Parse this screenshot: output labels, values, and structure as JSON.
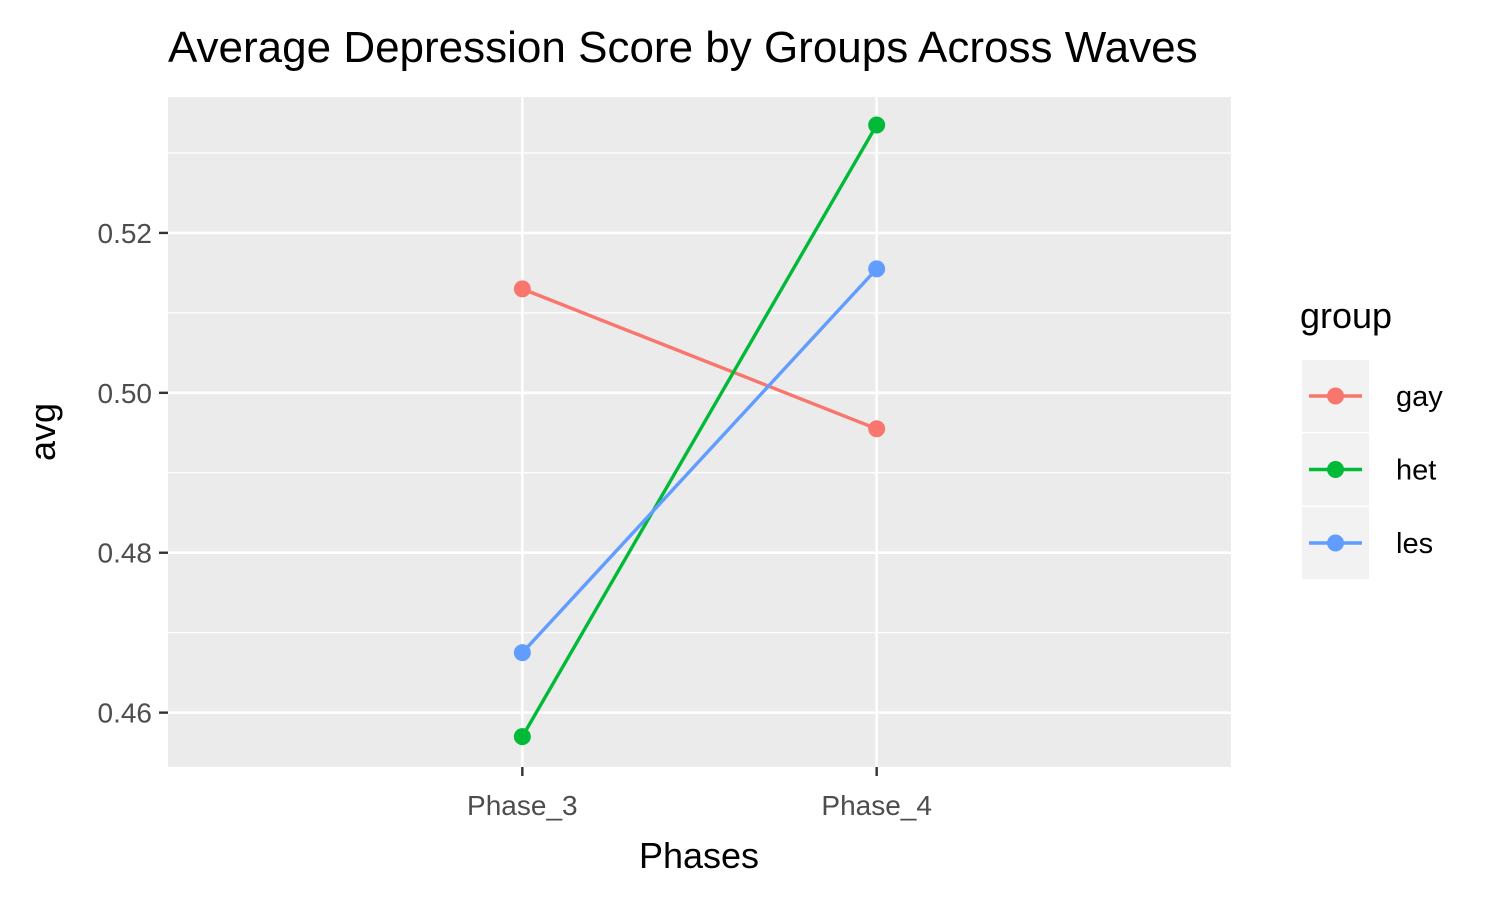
{
  "chart_data": {
    "type": "line",
    "title": "Average Depression Score by Groups Across Waves",
    "xlabel": "Phases",
    "ylabel": "avg",
    "categories": [
      "Phase_3",
      "Phase_4"
    ],
    "series": [
      {
        "name": "gay",
        "color": "#F8766D",
        "values": [
          0.513,
          0.4955
        ]
      },
      {
        "name": "het",
        "color": "#00BA38",
        "values": [
          0.457,
          0.5335
        ]
      },
      {
        "name": "les",
        "color": "#619CFF",
        "values": [
          0.4675,
          0.5155
        ]
      }
    ],
    "ylim": [
      0.4532,
      0.537
    ],
    "yticks": [
      0.46,
      0.48,
      0.5,
      0.52
    ],
    "ytick_labels": [
      "0.46",
      "0.48",
      "0.50",
      "0.52"
    ],
    "grid": true,
    "legend": {
      "title": "group",
      "position": "right"
    },
    "panel_background": "#EBEBEB"
  }
}
